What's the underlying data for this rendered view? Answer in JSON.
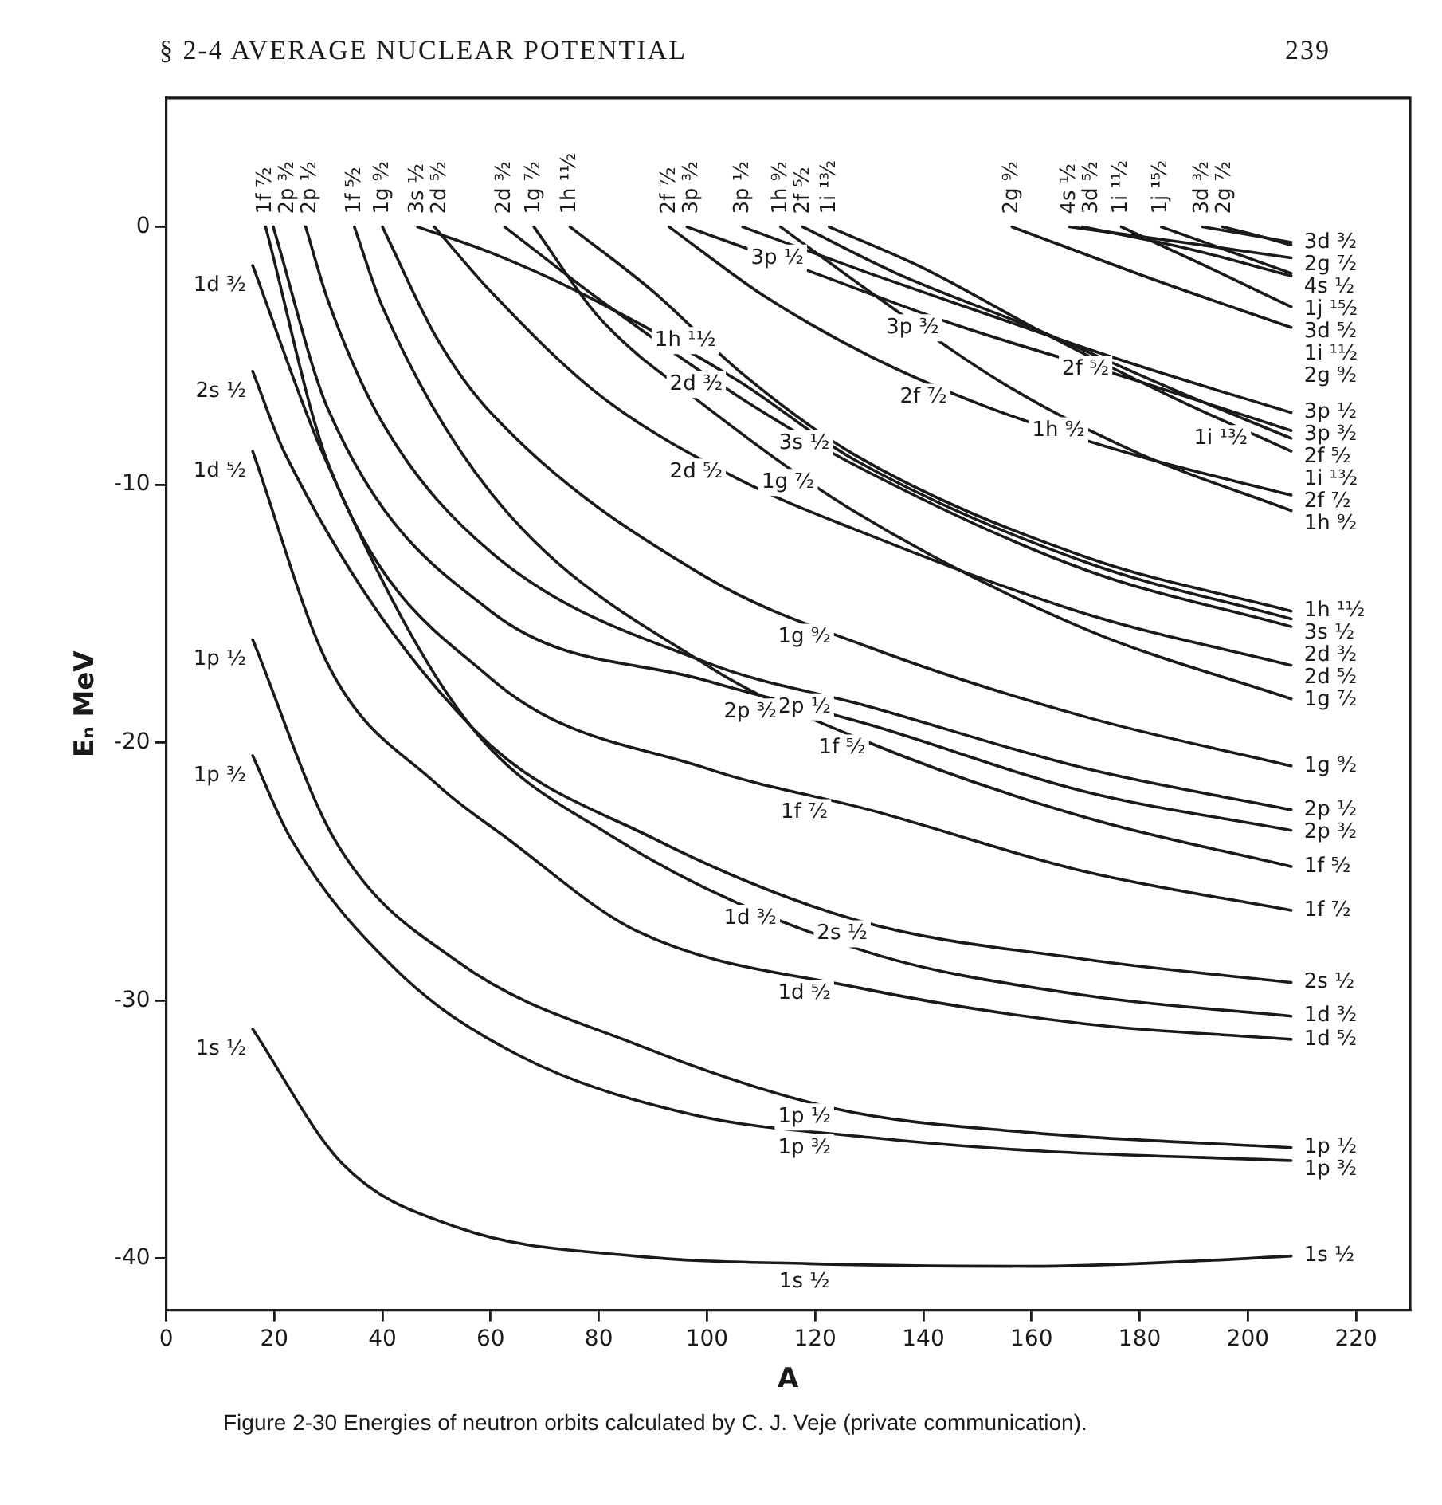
{
  "chart_data": {
    "type": "line",
    "title": "Figure 2-30   Energies of neutron orbits calculated by C. J. Veje (private communication).",
    "annotations": [
      "§ 2-4   AVERAGE NUCLEAR POTENTIAL",
      "239",
      {
        "text": "1g ⁷⁄₂",
        "x": 115,
        "y": -9.2
      },
      {
        "text": "2d ⁵⁄₂",
        "x": 98,
        "y": -8.8
      },
      {
        "text": "1g ⁹⁄₂",
        "x": 118,
        "y": -15.2
      },
      {
        "text": "2p ¹⁄₂",
        "x": 118,
        "y": -17.9
      },
      {
        "text": "2p ³⁄₂",
        "x": 108,
        "y": -18.1
      },
      {
        "text": "1f ⁵⁄₂",
        "x": 125,
        "y": -19.5
      },
      {
        "text": "1f ⁷⁄₂",
        "x": 118,
        "y": -22.0
      },
      {
        "text": "2s ¹⁄₂",
        "x": 125,
        "y": -26.7
      },
      {
        "text": "1d ³⁄₂",
        "x": 108,
        "y": -26.1
      },
      {
        "text": "1d ⁵⁄₂",
        "x": 118,
        "y": -29.0
      },
      {
        "text": "1p ¹⁄₂",
        "x": 118,
        "y": -33.8
      },
      {
        "text": "1p ³⁄₂",
        "x": 118,
        "y": -35.0
      },
      {
        "text": "1s ¹⁄₂",
        "x": 118,
        "y": -40.2
      },
      {
        "text": "1h ¹¹⁄₂",
        "x": 96,
        "y": -3.7
      },
      {
        "text": "2d ³⁄₂",
        "x": 98,
        "y": -5.4
      },
      {
        "text": "3s ¹⁄₂",
        "x": 118,
        "y": -7.7
      },
      {
        "text": "3p ³⁄₂",
        "x": 138,
        "y": -3.2
      },
      {
        "text": "3p ¹⁄₂",
        "x": 113,
        "y": -0.5
      },
      {
        "text": "2f ⁵⁄₂",
        "x": 170,
        "y": -4.8
      },
      {
        "text": "1i ¹³⁄₂",
        "x": 195,
        "y": -7.5
      },
      {
        "text": "2f ⁷⁄₂",
        "x": 140,
        "y": -5.9
      },
      {
        "text": "1h ⁹⁄₂",
        "x": 165,
        "y": -7.2
      }
    ],
    "xlabel": "A",
    "ylabel": "Eₙ MeV",
    "xlim": [
      0,
      230
    ],
    "xticks": [
      0,
      20,
      40,
      60,
      80,
      100,
      120,
      140,
      160,
      180,
      200,
      220
    ],
    "ylim": [
      -42,
      5
    ],
    "yticks": [
      0,
      -10,
      -20,
      -30,
      -40
    ],
    "grid": false,
    "legend": false,
    "marker": "none",
    "line_style": "solid",
    "series": [
      {
        "name": "3d ³⁄₂",
        "color": "#1a1a1a",
        "x": [
          191.6,
          200,
          208
        ],
        "values": [
          0,
          -0.3,
          -0.6
        ]
      },
      {
        "name": "2g ⁷⁄₂",
        "color": "#1a1a1a",
        "x": [
          195.3,
          202,
          208
        ],
        "values": [
          0,
          -0.35,
          -0.7
        ]
      },
      {
        "name": "4s ¹⁄₂",
        "color": "#1a1a1a",
        "x": [
          167,
          188,
          208
        ],
        "values": [
          0,
          -0.6,
          -1.2
        ]
      },
      {
        "name": "1j ¹⁵⁄₂",
        "color": "#1a1a1a",
        "x": [
          184,
          196,
          208
        ],
        "values": [
          0,
          -0.9,
          -1.8
        ]
      },
      {
        "name": "3d ⁵⁄₂",
        "color": "#1a1a1a",
        "x": [
          169.4,
          188,
          208
        ],
        "values": [
          0,
          -0.8,
          -1.9
        ]
      },
      {
        "name": "1i ¹¹⁄₂",
        "color": "#1a1a1a",
        "x": [
          176.6,
          192,
          208
        ],
        "values": [
          0,
          -1.5,
          -3.1
        ]
      },
      {
        "name": "2g ⁹⁄₂",
        "color": "#1a1a1a",
        "x": [
          156.4,
          182,
          208
        ],
        "values": [
          0,
          -2.0,
          -3.9
        ]
      },
      {
        "name": "3p ¹⁄₂",
        "color": "#1a1a1a",
        "x": [
          106.6,
          130,
          156,
          180,
          208
        ],
        "values": [
          0,
          -1.8,
          -3.7,
          -5.4,
          -7.2
        ]
      },
      {
        "name": "3p ³⁄₂",
        "color": "#1a1a1a",
        "x": [
          96.3,
          120,
          146,
          180,
          208
        ],
        "values": [
          0,
          -1.8,
          -3.8,
          -6.0,
          -7.9
        ]
      },
      {
        "name": "2f ⁵⁄₂",
        "color": "#1a1a1a",
        "x": [
          117.7,
          135,
          160,
          185,
          208
        ],
        "values": [
          0,
          -1.8,
          -3.9,
          -6.2,
          -8.2
        ]
      },
      {
        "name": "1i ¹³⁄₂",
        "color": "#1a1a1a",
        "x": [
          122.6,
          140,
          163,
          186,
          208
        ],
        "values": [
          0,
          -1.6,
          -4.2,
          -6.6,
          -8.7
        ]
      },
      {
        "name": "2f ⁷⁄₂",
        "color": "#1a1a1a",
        "x": [
          93,
          110,
          130,
          152,
          180,
          208
        ],
        "values": [
          0,
          -2.6,
          -5.0,
          -7.0,
          -8.9,
          -10.4
        ]
      },
      {
        "name": "1h ⁹⁄₂",
        "color": "#1a1a1a",
        "x": [
          113.6,
          130,
          155,
          180,
          208
        ],
        "values": [
          0,
          -2.5,
          -6.1,
          -8.8,
          -11.0
        ]
      },
      {
        "name": "1h ¹¹⁄₂",
        "color": "#1a1a1a",
        "x": [
          74.7,
          90,
          106,
          127,
          170,
          208
        ],
        "values": [
          0,
          -2.5,
          -5.6,
          -8.8,
          -12.8,
          -14.9
        ]
      },
      {
        "name": "3s ¹⁄₂",
        "color": "#1a1a1a",
        "x": [
          46.5,
          60,
          76,
          106,
          127,
          170,
          208
        ],
        "values": [
          0,
          -1.0,
          -2.5,
          -6.0,
          -9.0,
          -13.0,
          -15.2
        ]
      },
      {
        "name": "2d ³⁄₂",
        "color": "#1a1a1a",
        "x": [
          62.6,
          80,
          106,
          127,
          170,
          208
        ],
        "values": [
          0,
          -2.8,
          -6.6,
          -9.2,
          -13.3,
          -15.5
        ]
      },
      {
        "name": "2d ⁵⁄₂",
        "color": "#1a1a1a",
        "x": [
          49.6,
          60,
          80,
          106,
          127,
          170,
          208
        ],
        "values": [
          0,
          -2.5,
          -6.5,
          -9.8,
          -11.7,
          -15.0,
          -17.0
        ]
      },
      {
        "name": "1g ⁷⁄₂",
        "color": "#1a1a1a",
        "x": [
          68,
          80,
          100,
          127,
          170,
          208
        ],
        "values": [
          0,
          -3.5,
          -7.0,
          -11.0,
          -15.6,
          -18.3
        ]
      },
      {
        "name": "1g ⁹⁄₂",
        "color": "#1a1a1a",
        "x": [
          40,
          50,
          60,
          100,
          130,
          170,
          208
        ],
        "values": [
          0,
          -4.3,
          -7.2,
          -13.6,
          -16.3,
          -19.0,
          -20.9
        ]
      },
      {
        "name": "2p ¹⁄₂",
        "color": "#1a1a1a",
        "x": [
          25.8,
          30,
          40,
          60,
          100,
          130,
          170,
          208
        ],
        "values": [
          0,
          -2.9,
          -7.6,
          -12.6,
          -16.9,
          -18.6,
          -21.0,
          -22.6
        ]
      },
      {
        "name": "2p ³⁄₂",
        "color": "#1a1a1a",
        "x": [
          19.8,
          30,
          60,
          100,
          130,
          170,
          208
        ],
        "values": [
          0,
          -7.1,
          -14.9,
          -17.6,
          -19.3,
          -21.9,
          -23.4
        ]
      },
      {
        "name": "1f ⁵⁄₂",
        "color": "#1a1a1a",
        "x": [
          34.8,
          40,
          60,
          100,
          130,
          170,
          208
        ],
        "values": [
          0,
          -3.1,
          -10.3,
          -17.0,
          -20.0,
          -22.9,
          -24.8
        ]
      },
      {
        "name": "1f ⁷⁄₂",
        "color": "#1a1a1a",
        "x": [
          18.4,
          30,
          60,
          100,
          130,
          170,
          208
        ],
        "values": [
          0,
          -9.2,
          -17.5,
          -21.0,
          -22.6,
          -25.0,
          -26.5
        ]
      },
      {
        "name": "2s ¹⁄₂",
        "color": "#1a1a1a",
        "x": [
          16,
          22,
          57,
          90,
          128,
          170,
          208
        ],
        "values": [
          -5.6,
          -8.8,
          -19.5,
          -23.7,
          -26.9,
          -28.4,
          -29.3
        ]
      },
      {
        "name": "1d ³⁄₂",
        "color": "#1a1a1a",
        "x": [
          16,
          29,
          55,
          83,
          128,
          170,
          208
        ],
        "values": [
          -1.5,
          -8.8,
          -19.0,
          -23.7,
          -28.0,
          -29.8,
          -30.6
        ]
      },
      {
        "name": "1d ⁵⁄₂",
        "color": "#1a1a1a",
        "x": [
          16,
          30,
          50,
          63,
          87,
          128,
          170,
          208
        ],
        "values": [
          -8.7,
          -17.0,
          -21.6,
          -23.7,
          -27.3,
          -29.5,
          -30.9,
          -31.5
        ]
      },
      {
        "name": "1p ¹⁄₂",
        "color": "#1a1a1a",
        "x": [
          16,
          31,
          54,
          87,
          124,
          159,
          208
        ],
        "values": [
          -16.0,
          -23.7,
          -28.5,
          -31.7,
          -34.2,
          -35.1,
          -35.7
        ]
      },
      {
        "name": "1p ³⁄₂",
        "color": "#1a1a1a",
        "x": [
          16,
          23,
          43,
          65,
          97,
          130,
          159,
          208
        ],
        "values": [
          -20.5,
          -23.7,
          -28.9,
          -32.1,
          -34.4,
          -35.3,
          -35.8,
          -36.2
        ]
      },
      {
        "name": "1s ¹⁄₂",
        "color": "#1a1a1a",
        "x": [
          16,
          32.5,
          54,
          86.6,
          119,
          160,
          190,
          208
        ],
        "values": [
          -31.1,
          -36.3,
          -38.8,
          -39.9,
          -40.2,
          -40.3,
          -40.1,
          -39.9
        ]
      }
    ]
  }
}
